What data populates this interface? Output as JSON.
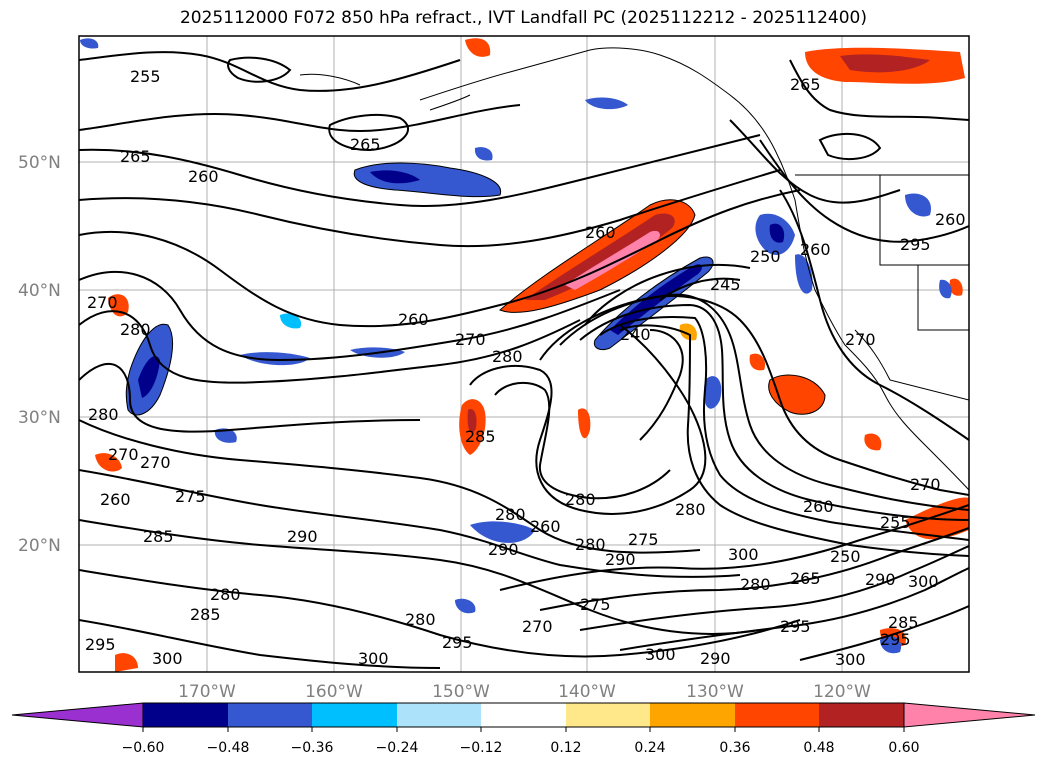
{
  "title": "2025112000 F072 850 hPa refract., IVT Landfall PC (2025112212 - 2025112400)",
  "latitude_labels": [
    "50°N",
    "40°N",
    "30°N",
    "20°N"
  ],
  "longitude_labels": [
    "170°W",
    "160°W",
    "150°W",
    "140°W",
    "130°W",
    "120°W"
  ],
  "colorbar": {
    "ticks": [
      "−0.60",
      "−0.48",
      "−0.36",
      "−0.24",
      "−0.12",
      "0.12",
      "0.24",
      "0.36",
      "0.48",
      "0.60"
    ],
    "colors": [
      "#9b30d0",
      "#00008b",
      "#3557d0",
      "#00bfff",
      "#ade3fa",
      "#ffffff",
      "#ffe88a",
      "#ffa500",
      "#ff4500",
      "#b22222",
      "#ff82ab"
    ]
  },
  "contour_labels": [
    "255",
    "265",
    "260",
    "265",
    "260",
    "270",
    "280",
    "260",
    "270",
    "280",
    "240",
    "245",
    "250",
    "260",
    "260",
    "265",
    "270",
    "280",
    "270",
    "275",
    "285",
    "290",
    "285",
    "280",
    "295",
    "300",
    "285",
    "280",
    "280",
    "260",
    "280",
    "275",
    "290",
    "290",
    "275",
    "280",
    "270",
    "300",
    "295",
    "300",
    "290",
    "265",
    "280",
    "295",
    "260",
    "250",
    "290",
    "300",
    "285",
    "300",
    "270",
    "255",
    "295",
    "270",
    "260",
    "280",
    "300",
    "295"
  ]
}
